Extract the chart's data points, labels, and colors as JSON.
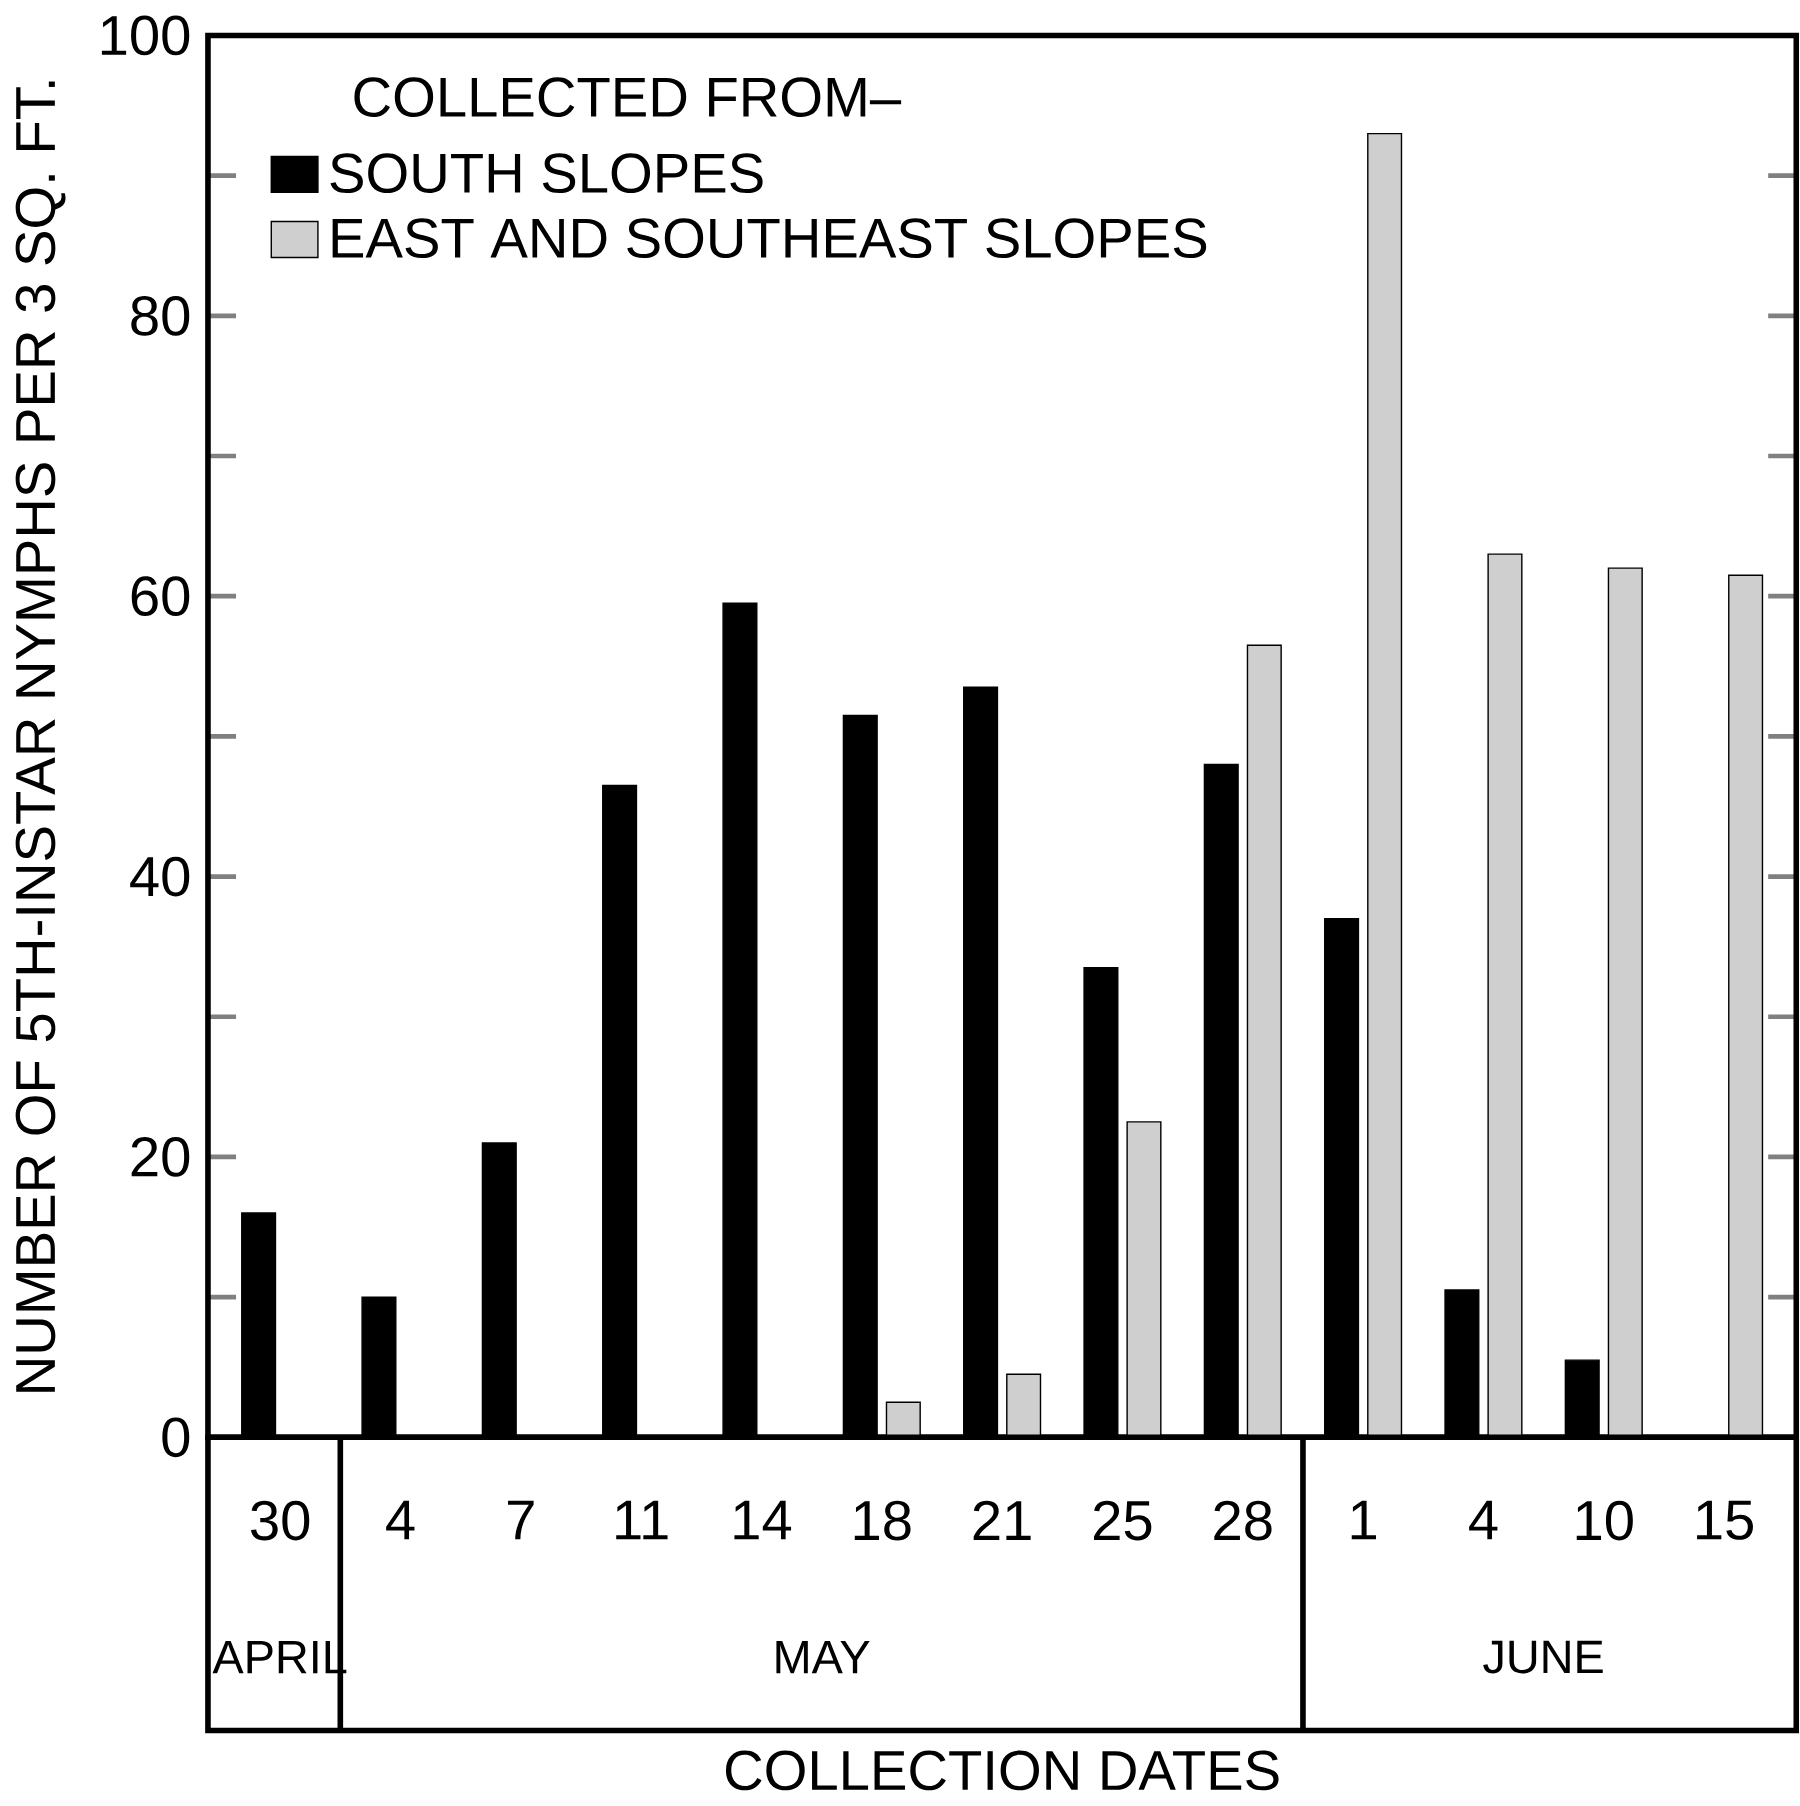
{
  "chart_data": {
    "type": "bar",
    "xlabel": "COLLECTION DATES",
    "ylabel": "NUMBER OF 5TH-INSTAR NYMPHS PER 3 SQ. FT.",
    "legend_title": "COLLECTED FROM–",
    "categories": [
      "30",
      "4",
      "7",
      "11",
      "14",
      "18",
      "21",
      "25",
      "28",
      "1",
      "4",
      "10",
      "15"
    ],
    "series": [
      {
        "name": "SOUTH SLOPES",
        "color": "#000000",
        "values": [
          16,
          10,
          21,
          46.5,
          59.5,
          51.5,
          53.5,
          33.5,
          48,
          37,
          10.5,
          5.5,
          null
        ]
      },
      {
        "name": "EAST AND SOUTHEAST SLOPES",
        "color": "#cfcfcf",
        "values": [
          null,
          null,
          null,
          null,
          null,
          2.5,
          4.5,
          22.5,
          56.5,
          93,
          63,
          62,
          61.5
        ]
      }
    ],
    "ylim": [
      0,
      100
    ],
    "yticks": [
      0,
      {
        "value": 10,
        "label": null
      },
      20,
      {
        "value": 30,
        "label": null
      },
      40,
      {
        "value": 50,
        "label": null
      },
      60,
      {
        "value": 70,
        "label": null
      },
      80,
      {
        "value": 90,
        "label": null
      },
      100
    ],
    "annotations": [
      "APRIL",
      "MAY",
      "JUNE"
    ],
    "legend": "top left",
    "grid": false
  }
}
